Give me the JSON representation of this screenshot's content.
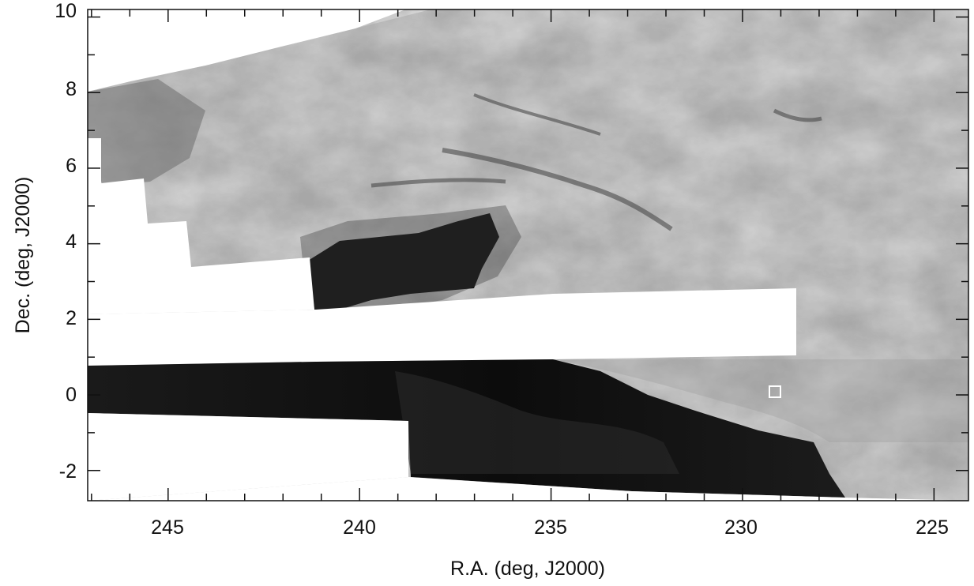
{
  "figure": {
    "xlabel": "R.A. (deg, J2000)",
    "ylabel": "Dec. (deg, J2000)",
    "x_ticks": [
      "245",
      "240",
      "235",
      "230",
      "225"
    ],
    "y_ticks": [
      "10",
      "8",
      "6",
      "4",
      "2",
      "0",
      "-2"
    ],
    "x_range": [
      247.1,
      224.1
    ],
    "y_range": [
      -2.8,
      10.2
    ],
    "image_type": "grayscale extinction map",
    "marker": {
      "shape": "square",
      "color": "#ffffff",
      "ra": 229.2,
      "dec": 0.05
    }
  }
}
